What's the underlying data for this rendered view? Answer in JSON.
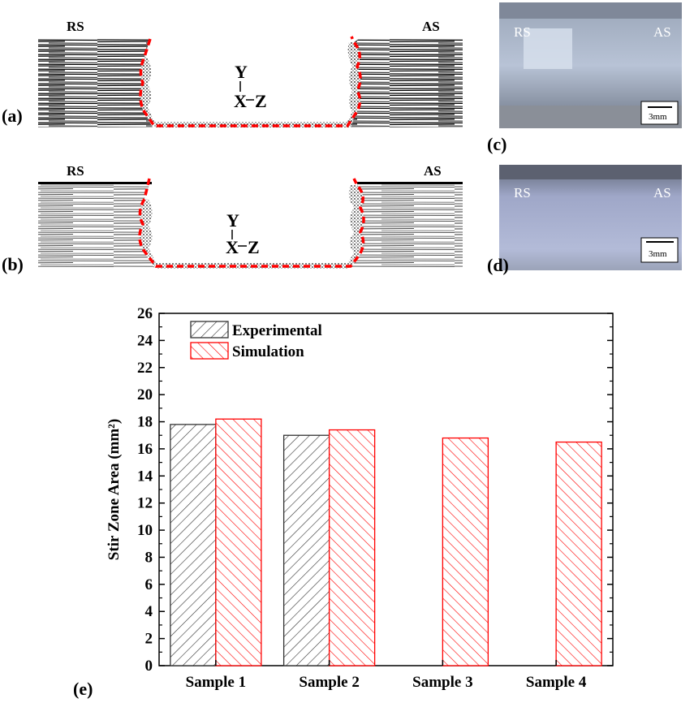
{
  "panels": {
    "a": {
      "label": "(a)",
      "left_side": "RS",
      "right_side": "AS",
      "axis_y": "Y",
      "axis_x": "X",
      "axis_z": "Z"
    },
    "b": {
      "label": "(b)",
      "left_side": "RS",
      "right_side": "AS",
      "axis_y": "Y",
      "axis_x": "X",
      "axis_z": "Z"
    },
    "c": {
      "label": "(c)",
      "left_side": "RS",
      "right_side": "AS",
      "scale": "3mm"
    },
    "d": {
      "label": "(d)",
      "left_side": "RS",
      "right_side": "AS",
      "scale": "3mm"
    },
    "e": {
      "label": "(e)"
    }
  },
  "colors": {
    "experimental": "#333333",
    "simulation": "#ff0000",
    "outline": "#ff0000"
  },
  "chart_data": {
    "type": "bar",
    "title": "",
    "xlabel": "",
    "ylabel": "Stir Zone Area (mm²)",
    "ylim": [
      0,
      26
    ],
    "yticks": [
      0,
      2,
      4,
      6,
      8,
      10,
      12,
      14,
      16,
      18,
      20,
      22,
      24,
      26
    ],
    "categories": [
      "Sample 1",
      "Sample 2",
      "Sample 3",
      "Sample 4"
    ],
    "series": [
      {
        "name": "Experimental",
        "values": [
          17.8,
          17.0,
          null,
          null
        ]
      },
      {
        "name": "Simulation",
        "values": [
          18.2,
          17.4,
          16.8,
          16.5
        ]
      }
    ],
    "legend_position": "top-left",
    "grid": false
  }
}
